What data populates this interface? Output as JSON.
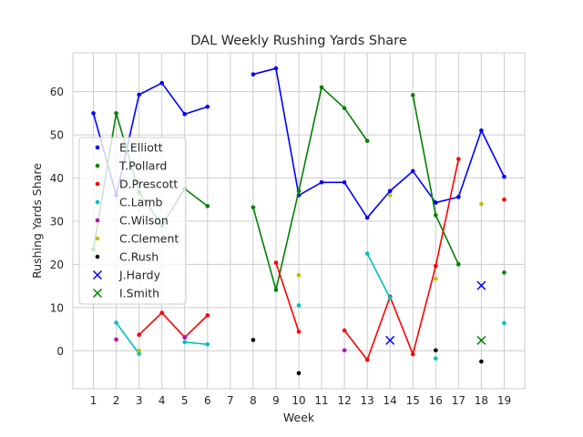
{
  "chart_data": {
    "type": "line",
    "title": "DAL Weekly Rushing Yards Share",
    "xlabel": "Week",
    "ylabel": "Rushing Yards Share",
    "x_ticks": [
      "1",
      "2",
      "3",
      "4",
      "5",
      "6",
      "7",
      "8",
      "9",
      "10",
      "11",
      "12",
      "13",
      "14",
      "15",
      "16",
      "17",
      "18",
      "19"
    ],
    "y_ticks": [
      "0",
      "10",
      "20",
      "30",
      "40",
      "50",
      "60"
    ],
    "xlim": [
      0.1,
      19.9
    ],
    "ylim": [
      -8.8,
      69.0
    ],
    "grid": true,
    "legend_position": "center-left",
    "series": [
      {
        "name": "E.Elliott",
        "color": "#0000ff",
        "marker": "dot",
        "line": true,
        "points": [
          [
            1,
            55.0
          ],
          [
            2,
            36.0
          ],
          [
            3,
            59.3
          ],
          [
            4,
            62.0
          ],
          [
            5,
            54.8
          ],
          [
            6,
            56.5
          ],
          [
            7,
            null
          ],
          [
            8,
            64.0
          ],
          [
            9,
            65.4
          ],
          [
            10,
            36.0
          ],
          [
            11,
            39.0
          ],
          [
            12,
            39.0
          ],
          [
            13,
            30.8
          ],
          [
            14,
            37.0
          ],
          [
            15,
            41.6
          ],
          [
            16,
            34.3
          ],
          [
            17,
            35.6
          ],
          [
            18,
            51.0
          ],
          [
            19,
            40.3
          ]
        ]
      },
      {
        "name": "T.Pollard",
        "color": "#008000",
        "marker": "dot",
        "line": true,
        "points": [
          [
            1,
            23.5
          ],
          [
            2,
            55.0
          ],
          [
            3,
            36.7
          ],
          [
            4,
            29.0
          ],
          [
            5,
            37.5
          ],
          [
            6,
            33.5
          ],
          [
            7,
            null
          ],
          [
            8,
            33.2
          ],
          [
            9,
            14.1
          ],
          [
            10,
            37.0
          ],
          [
            11,
            61.0
          ],
          [
            12,
            56.2
          ],
          [
            13,
            48.6
          ],
          [
            14,
            null
          ],
          [
            15,
            59.2
          ],
          [
            16,
            31.4
          ],
          [
            17,
            20.0
          ],
          [
            18,
            null
          ],
          [
            19,
            18.1
          ]
        ]
      },
      {
        "name": "D.Prescott",
        "color": "#ff0000",
        "marker": "dot",
        "line": true,
        "points": [
          [
            1,
            null
          ],
          [
            2,
            null
          ],
          [
            3,
            3.7
          ],
          [
            4,
            8.8
          ],
          [
            5,
            3.1
          ],
          [
            6,
            8.2
          ],
          [
            7,
            null
          ],
          [
            8,
            null
          ],
          [
            9,
            20.4
          ],
          [
            10,
            4.4
          ],
          [
            11,
            null
          ],
          [
            12,
            4.7
          ],
          [
            13,
            -2.1
          ],
          [
            14,
            12.5
          ],
          [
            15,
            -0.8
          ],
          [
            16,
            19.6
          ],
          [
            17,
            44.4
          ],
          [
            18,
            null
          ],
          [
            19,
            35.0
          ]
        ]
      },
      {
        "name": "C.Lamb",
        "color": "#00bfbf",
        "marker": "dot",
        "line": true,
        "points": [
          [
            1,
            null
          ],
          [
            2,
            6.5
          ],
          [
            3,
            -0.7
          ],
          [
            4,
            null
          ],
          [
            5,
            2.0
          ],
          [
            6,
            1.5
          ],
          [
            7,
            null
          ],
          [
            8,
            null
          ],
          [
            9,
            null
          ],
          [
            10,
            10.5
          ],
          [
            11,
            null
          ],
          [
            12,
            null
          ],
          [
            13,
            22.5
          ],
          [
            14,
            12.2
          ],
          [
            15,
            null
          ],
          [
            16,
            -1.8
          ],
          [
            17,
            null
          ],
          [
            18,
            null
          ],
          [
            19,
            6.4
          ]
        ]
      },
      {
        "name": "C.Wilson",
        "color": "#bf00bf",
        "marker": "dot",
        "line": true,
        "points": [
          [
            1,
            null
          ],
          [
            2,
            2.6
          ],
          [
            3,
            null
          ],
          [
            4,
            null
          ],
          [
            5,
            3.1
          ],
          [
            6,
            null
          ],
          [
            7,
            null
          ],
          [
            8,
            null
          ],
          [
            9,
            null
          ],
          [
            10,
            null
          ],
          [
            11,
            null
          ],
          [
            12,
            0.1
          ],
          [
            13,
            null
          ],
          [
            14,
            null
          ],
          [
            15,
            null
          ],
          [
            16,
            null
          ],
          [
            17,
            null
          ],
          [
            18,
            null
          ],
          [
            19,
            null
          ]
        ]
      },
      {
        "name": "C.Clement",
        "color": "#bfbf00",
        "marker": "dot",
        "line": true,
        "points": [
          [
            1,
            null
          ],
          [
            2,
            null
          ],
          [
            3,
            0.0
          ],
          [
            4,
            null
          ],
          [
            5,
            null
          ],
          [
            6,
            null
          ],
          [
            7,
            null
          ],
          [
            8,
            null
          ],
          [
            9,
            null
          ],
          [
            10,
            17.5
          ],
          [
            11,
            null
          ],
          [
            12,
            null
          ],
          [
            13,
            null
          ],
          [
            14,
            36.0
          ],
          [
            15,
            null
          ],
          [
            16,
            16.7
          ],
          [
            17,
            null
          ],
          [
            18,
            34.0
          ],
          [
            19,
            null
          ]
        ]
      },
      {
        "name": "C.Rush",
        "color": "#000000",
        "marker": "dot",
        "line": true,
        "points": [
          [
            1,
            null
          ],
          [
            2,
            null
          ],
          [
            3,
            null
          ],
          [
            4,
            null
          ],
          [
            5,
            null
          ],
          [
            6,
            null
          ],
          [
            7,
            null
          ],
          [
            8,
            2.5
          ],
          [
            9,
            null
          ],
          [
            10,
            -5.2
          ],
          [
            11,
            null
          ],
          [
            12,
            null
          ],
          [
            13,
            null
          ],
          [
            14,
            null
          ],
          [
            15,
            null
          ],
          [
            16,
            0.1
          ],
          [
            17,
            null
          ],
          [
            18,
            -2.5
          ],
          [
            19,
            null
          ]
        ]
      },
      {
        "name": "J.Hardy",
        "color": "#0000ff",
        "marker": "x",
        "line": false,
        "points": [
          [
            14,
            2.4
          ],
          [
            18,
            15.1
          ]
        ]
      },
      {
        "name": "I.Smith",
        "color": "#008000",
        "marker": "x",
        "line": false,
        "points": [
          [
            18,
            2.4
          ]
        ]
      }
    ]
  }
}
